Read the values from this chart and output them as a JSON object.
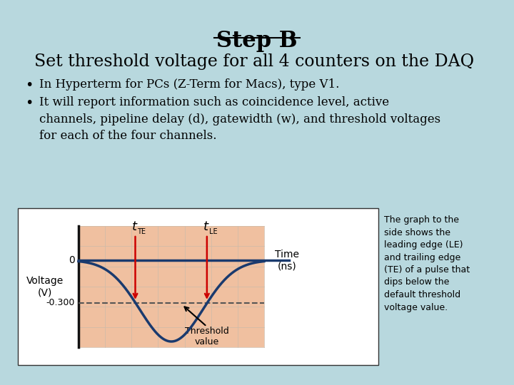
{
  "title": "Step B",
  "subtitle": "Set threshold voltage for all 4 counters on the DAQ",
  "bullet1": "In Hyperterm for PCs (Z-Term for Macs), type V1.",
  "bullet2": "It will report information such as coincidence level, active\nchannels, pipeline delay (d), gatewidth (w), and threshold voltages\nfor each of the four channels.",
  "bg_color": "#b8d8de",
  "text_color": "#000000",
  "box_bg": "#ffffff",
  "graph_label_voltage": "Voltage\n(V)",
  "graph_label_time": "Time\n(ns)",
  "graph_zero": "0",
  "graph_threshold": "-0.300",
  "graph_threshold_label": "Threshold\nvalue",
  "side_text": "The graph to the\nside shows the\nleading edge (LE)\nand trailing edge\n(TE) of a pulse that\ndips below the\ndefault threshold\nvoltage value.",
  "pulse_color": "#1a3a6e",
  "arrow_color": "#cc0000",
  "threshold_line_color": "#555555",
  "grid_color": "#f0c0a0"
}
